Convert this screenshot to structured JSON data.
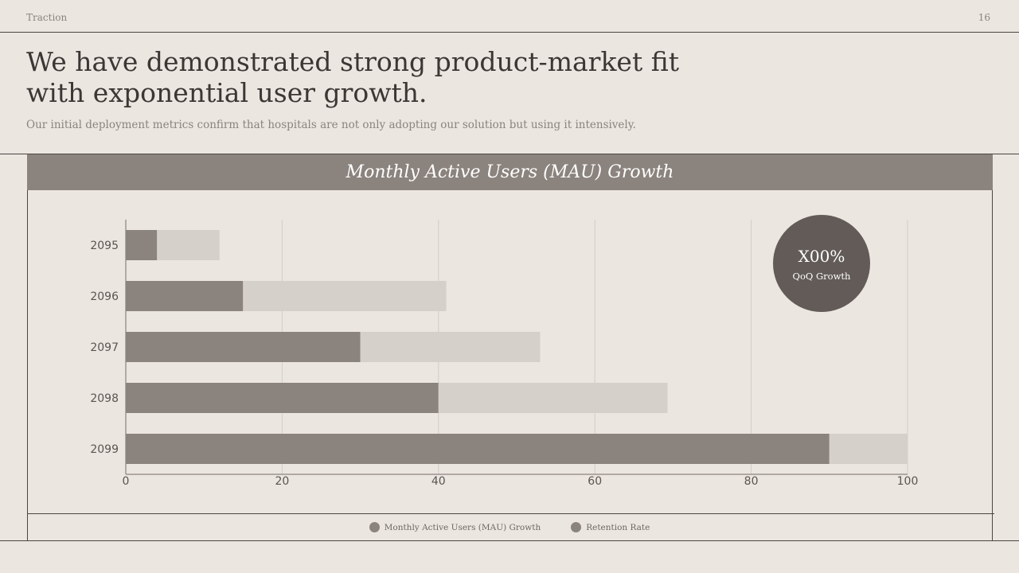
{
  "header": {
    "section": "Traction",
    "page_number": "16"
  },
  "headline": "We have demonstrated strong product-market fit with exponential user growth.",
  "subtitle": "Our initial deployment metrics confirm that hospitals are not only adopting our solution but using it intensively.",
  "badge": {
    "value": "X00%",
    "label": "QoQ Growth"
  },
  "colors": {
    "background": "#ece6e0",
    "primary": "#8b837d",
    "secondary": "#d6d0ca",
    "badge": "#625b58",
    "text": "#3b3734"
  },
  "chart_data": {
    "type": "bar",
    "orientation": "horizontal",
    "stacked": true,
    "title": "Monthly Active Users (MAU) Growth",
    "categories": [
      "2095",
      "2096",
      "2097",
      "2098",
      "2099"
    ],
    "series": [
      {
        "name": "Monthly Active Users (MAU) Growth",
        "values": [
          4,
          15,
          30,
          40,
          90
        ],
        "color": "#8b837d"
      },
      {
        "name": "Retention Rate",
        "values": [
          8,
          26,
          23,
          29.3,
          10
        ],
        "color": "#d6d0ca"
      }
    ],
    "xlim": [
      0,
      100
    ],
    "xticks": [
      0,
      20,
      40,
      60,
      80,
      100
    ],
    "grid": true,
    "legend": "bottom-center"
  }
}
